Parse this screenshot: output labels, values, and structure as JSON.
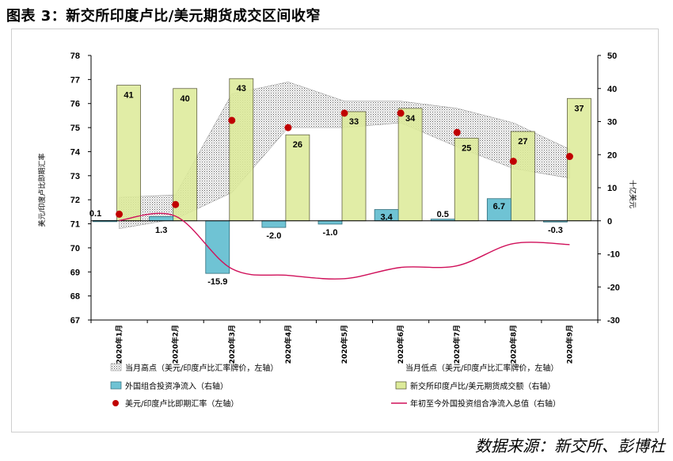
{
  "title": "图表 3：新交所印度卢比/美元期货成交区间收窄",
  "source": "数据来源：新交所、彭博社",
  "colors": {
    "volume_bar": "#DDEB9A",
    "volume_border": "#4d4d2a",
    "flow_bar": "#6FC3D4",
    "flow_border": "#2f6c7a",
    "spot_dot": "#C00000",
    "cum_line": "#D0105A",
    "band_fill": "#888888"
  },
  "chart_data": {
    "type": "bar",
    "categories": [
      "2020年1月",
      "2020年2月",
      "2020年3月",
      "2020年4月",
      "2020年5月",
      "2020年6月",
      "2020年7月",
      "2020年8月",
      "2020年9月"
    ],
    "left_axis": {
      "label": "美元/印度卢比即期汇率",
      "ylim": [
        67,
        78
      ],
      "ticks": [
        67,
        68,
        69,
        70,
        71,
        72,
        73,
        74,
        75,
        76,
        77,
        78
      ]
    },
    "right_axis": {
      "label": "十亿美元",
      "ylim": [
        -30,
        50
      ],
      "ticks": [
        -30,
        -20,
        -10,
        0,
        10,
        20,
        30,
        40,
        50
      ]
    },
    "series": [
      {
        "name": "新交所印度卢比/美元期货成交额（右轴）",
        "type": "bar",
        "axis": "right",
        "values": [
          41,
          40,
          43,
          26,
          33,
          34,
          25,
          27,
          37
        ],
        "labels": [
          "41",
          "40",
          "43",
          "26",
          "33",
          "34",
          "25",
          "27",
          "37"
        ]
      },
      {
        "name": "外国组合投资净流入（右轴）",
        "type": "bar",
        "axis": "right",
        "values": [
          0.1,
          1.3,
          -15.9,
          -2.0,
          -1.0,
          3.4,
          0.5,
          6.7,
          -0.3
        ],
        "labels": [
          "0.1",
          "1.3",
          "-15.9",
          "-2.0",
          "-1.0",
          "3.4",
          "0.5",
          "6.7",
          "-0.3"
        ]
      },
      {
        "name": "美元/印度卢比即期汇率（左轴）",
        "type": "scatter",
        "axis": "left",
        "values": [
          71.4,
          71.8,
          75.3,
          75.0,
          75.6,
          75.6,
          74.8,
          73.6,
          73.8
        ]
      },
      {
        "name": "年初至今外国投资组合净流入总值（右轴）",
        "type": "line",
        "axis": "right",
        "values": [
          0.1,
          1.4,
          -14.5,
          -16.5,
          -17.5,
          -14.1,
          -13.6,
          -6.9,
          -7.2
        ]
      },
      {
        "name": "当月高点（美元/印度卢比汇率牌价，左轴）",
        "type": "area",
        "axis": "left",
        "values": [
          72.1,
          72.2,
          76.4,
          76.9,
          76.1,
          76.1,
          75.8,
          75.2,
          74.1
        ]
      },
      {
        "name": "当月低点（美元/印度卢比汇率牌价，左轴）",
        "type": "area",
        "axis": "left",
        "values": [
          70.8,
          71.2,
          72.3,
          75.0,
          75.0,
          75.2,
          74.2,
          73.3,
          72.9
        ]
      }
    ],
    "legend": {
      "position": "bottom",
      "items": [
        {
          "key": "high",
          "label": "当月高点（美元/印度卢比汇率牌价，左轴）"
        },
        {
          "key": "low",
          "label": "当月低点（美元/印度卢比汇率牌价，左轴）"
        },
        {
          "key": "flow",
          "label": "外国组合投资净流入（右轴）"
        },
        {
          "key": "volume",
          "label": "新交所印度卢比/美元期货成交额（右轴）"
        },
        {
          "key": "spot",
          "label": "美元/印度卢比即期汇率（左轴）"
        },
        {
          "key": "cum",
          "label": "年初至今外国投资组合净流入总值（右轴）"
        }
      ]
    }
  }
}
